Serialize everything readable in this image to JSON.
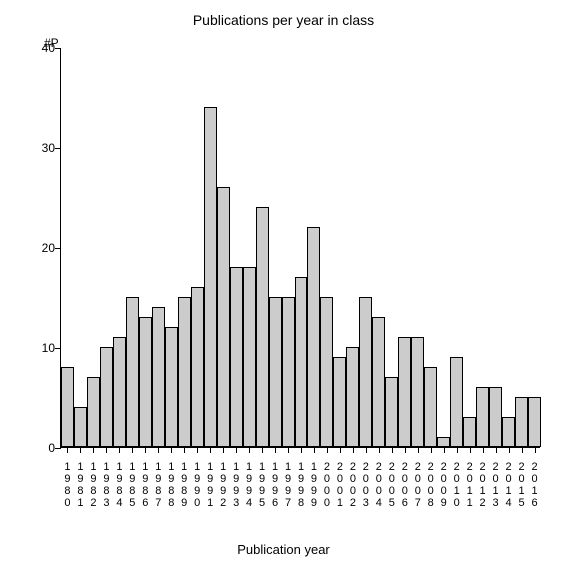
{
  "chart": {
    "type": "bar",
    "title": "Publications per year in class",
    "y_axis_label": "#P",
    "x_axis_label": "Publication year",
    "title_fontsize": 14,
    "label_fontsize": 12,
    "background_color": "#ffffff",
    "bar_fill": "#cccccc",
    "bar_border": "#000000",
    "axis_color": "#000000",
    "text_color": "#000000",
    "ylim": [
      0,
      40
    ],
    "ytick_step": 10,
    "yticks": [
      0,
      10,
      20,
      30,
      40
    ],
    "bar_width": 1.0,
    "categories": [
      "1980",
      "1981",
      "1982",
      "1983",
      "1984",
      "1985",
      "1986",
      "1987",
      "1988",
      "1989",
      "1990",
      "1991",
      "1992",
      "1993",
      "1994",
      "1995",
      "1996",
      "1997",
      "1998",
      "1999",
      "2000",
      "2001",
      "2002",
      "2003",
      "2004",
      "2005",
      "2006",
      "2007",
      "2008",
      "2009",
      "2010",
      "2011",
      "2012",
      "2013",
      "2014",
      "2015",
      "2016"
    ],
    "values": [
      8,
      4,
      7,
      10,
      11,
      15,
      13,
      14,
      12,
      15,
      16,
      34,
      26,
      18,
      18,
      24,
      15,
      15,
      17,
      22,
      15,
      9,
      10,
      15,
      13,
      7,
      11,
      11,
      8,
      1,
      9,
      3,
      6,
      6,
      3,
      5,
      5
    ]
  }
}
